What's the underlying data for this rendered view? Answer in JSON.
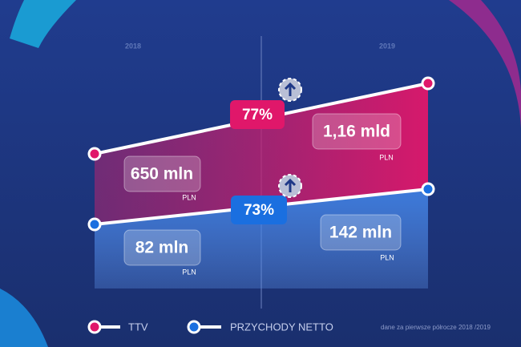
{
  "years": [
    "2018",
    "2019"
  ],
  "series": [
    {
      "name": "TTV",
      "start": "650 mln",
      "end": "1,16 mld",
      "unit": "PLN",
      "growth": "77%"
    },
    {
      "name": "PRZYCHODY NETTO",
      "start": "82 mln",
      "end": "142 mln",
      "unit": "PLN",
      "growth": "73%"
    }
  ],
  "footnote": "dane za pierwsze półrocze 2018 /2019"
}
